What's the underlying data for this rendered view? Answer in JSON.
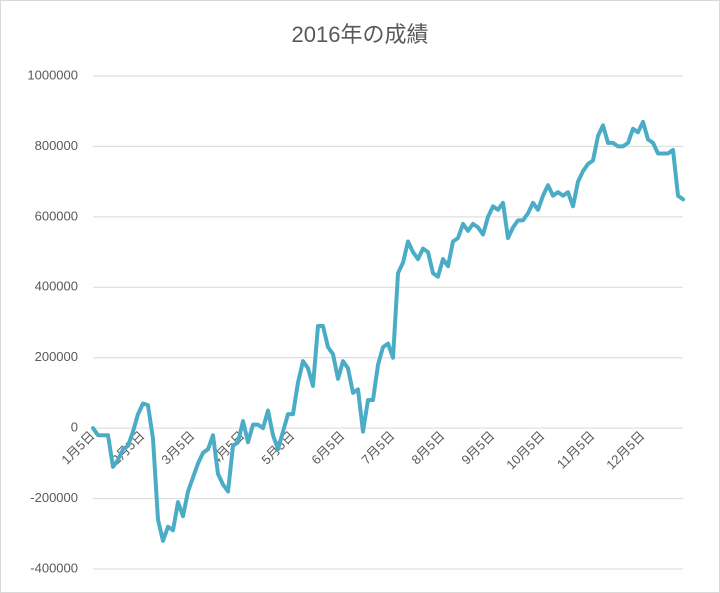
{
  "chart_data": {
    "type": "line",
    "title": "2016年の成績",
    "categories": [
      "1月5日",
      null,
      null,
      null,
      null,
      null,
      null,
      null,
      null,
      null,
      "2月5日",
      null,
      null,
      null,
      null,
      null,
      null,
      null,
      null,
      null,
      "3月5日",
      null,
      null,
      null,
      null,
      null,
      null,
      null,
      null,
      null,
      "4月5日",
      null,
      null,
      null,
      null,
      null,
      null,
      null,
      null,
      null,
      "5月5日",
      null,
      null,
      null,
      null,
      null,
      null,
      null,
      null,
      null,
      "6月5日",
      null,
      null,
      null,
      null,
      null,
      null,
      null,
      null,
      null,
      "7月5日",
      null,
      null,
      null,
      null,
      null,
      null,
      null,
      null,
      null,
      "8月5日",
      null,
      null,
      null,
      null,
      null,
      null,
      null,
      null,
      null,
      "9月5日",
      null,
      null,
      null,
      null,
      null,
      null,
      null,
      null,
      null,
      "10月5日",
      null,
      null,
      null,
      null,
      null,
      null,
      null,
      null,
      null,
      "11月5日",
      null,
      null,
      null,
      null,
      null,
      null,
      null,
      null,
      null,
      "12月5日",
      null,
      null,
      null,
      null,
      null,
      null,
      null,
      null
    ],
    "series": [
      {
        "color": "#4bacc6",
        "values": [
          0,
          -20000,
          -20000,
          -20000,
          -110000,
          -90000,
          -60000,
          -50000,
          -10000,
          40000,
          70000,
          65000,
          -30000,
          -260000,
          -320000,
          -280000,
          -290000,
          -210000,
          -250000,
          -180000,
          -140000,
          -100000,
          -70000,
          -60000,
          -20000,
          -130000,
          -160000,
          -180000,
          -50000,
          -40000,
          20000,
          -40000,
          10000,
          10000,
          0,
          50000,
          -20000,
          -60000,
          -10000,
          40000,
          40000,
          130000,
          190000,
          170000,
          120000,
          290000,
          290000,
          230000,
          210000,
          140000,
          190000,
          170000,
          100000,
          110000,
          -10000,
          80000,
          80000,
          180000,
          230000,
          240000,
          200000,
          440000,
          470000,
          530000,
          500000,
          480000,
          510000,
          500000,
          440000,
          430000,
          480000,
          460000,
          530000,
          540000,
          580000,
          560000,
          580000,
          570000,
          550000,
          600000,
          630000,
          620000,
          640000,
          540000,
          570000,
          590000,
          590000,
          610000,
          640000,
          620000,
          660000,
          690000,
          660000,
          670000,
          660000,
          670000,
          630000,
          700000,
          730000,
          750000,
          760000,
          830000,
          860000,
          810000,
          810000,
          800000,
          800000,
          810000,
          850000,
          840000,
          870000,
          820000,
          810000,
          780000,
          780000,
          780000,
          790000,
          660000,
          650000
        ]
      }
    ],
    "ylim": [
      -400000,
      1000000
    ],
    "yticks": [
      -400000,
      -200000,
      0,
      200000,
      400000,
      600000,
      800000,
      1000000
    ],
    "grid": true
  }
}
